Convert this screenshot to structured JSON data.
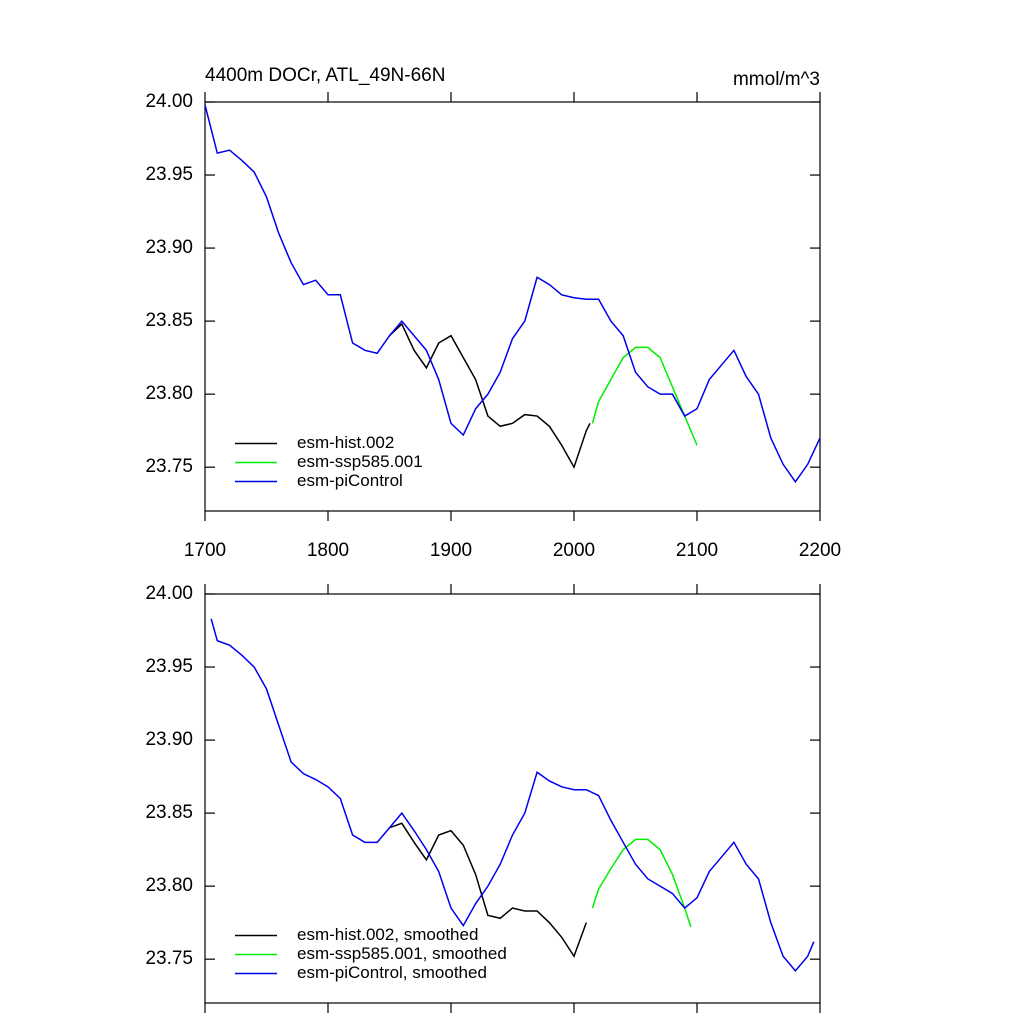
{
  "chart_data": [
    {
      "type": "line",
      "title": "4400m DOCr, ATL_49N-66N",
      "units": "mmol/m^3",
      "xlim": [
        1700,
        2200
      ],
      "xticks": [
        1700,
        1800,
        1900,
        2000,
        2100,
        2200
      ],
      "xtick_labels": true,
      "ylim": [
        23.72,
        24.0
      ],
      "yticks": [
        23.75,
        {
          "value": 23.8,
          "label": "23.80"
        },
        23.85,
        {
          "value": 23.9,
          "label": "23.90"
        },
        23.95,
        {
          "value": 24.0,
          "label": "24.00"
        }
      ],
      "legend": "lower left",
      "series": [
        {
          "name": "esm-hist.002",
          "color": "#000000",
          "x": [
            1850,
            1860,
            1870,
            1880,
            1890,
            1900,
            1910,
            1920,
            1930,
            1940,
            1950,
            1960,
            1970,
            1980,
            1990,
            2000,
            2010,
            2013
          ],
          "values": [
            23.84,
            23.848,
            23.83,
            23.818,
            23.835,
            23.84,
            23.825,
            23.81,
            23.785,
            23.778,
            23.78,
            23.786,
            23.785,
            23.778,
            23.765,
            23.75,
            23.775,
            23.78
          ]
        },
        {
          "name": "esm-ssp585.001",
          "color": "#00ee00",
          "x": [
            2015,
            2020,
            2030,
            2040,
            2050,
            2060,
            2070,
            2080,
            2090,
            2100
          ],
          "values": [
            23.78,
            23.795,
            23.81,
            23.825,
            23.832,
            23.832,
            23.825,
            23.805,
            23.785,
            23.765
          ]
        },
        {
          "name": "esm-piControl",
          "color": "#0000ee",
          "x": [
            1700,
            1710,
            1720,
            1730,
            1740,
            1750,
            1760,
            1770,
            1780,
            1790,
            1800,
            1810,
            1820,
            1830,
            1840,
            1850,
            1860,
            1870,
            1880,
            1890,
            1900,
            1910,
            1920,
            1930,
            1940,
            1950,
            1960,
            1970,
            1980,
            1990,
            2000,
            2010,
            2020,
            2030,
            2040,
            2050,
            2060,
            2070,
            2080,
            2090,
            2100,
            2110,
            2120,
            2130,
            2140,
            2150,
            2160,
            2170,
            2180,
            2190,
            2200
          ],
          "values": [
            23.998,
            23.965,
            23.967,
            23.96,
            23.952,
            23.935,
            23.91,
            23.89,
            23.875,
            23.878,
            23.868,
            23.868,
            23.835,
            23.83,
            23.828,
            23.84,
            23.85,
            23.84,
            23.83,
            23.81,
            23.78,
            23.772,
            23.79,
            23.8,
            23.815,
            23.838,
            23.85,
            23.88,
            23.875,
            23.868,
            23.866,
            23.865,
            23.865,
            23.85,
            23.84,
            23.815,
            23.805,
            23.8,
            23.8,
            23.785,
            23.79,
            23.81,
            23.82,
            23.83,
            23.812,
            23.8,
            23.77,
            23.752,
            23.74,
            23.752,
            23.77
          ]
        }
      ]
    },
    {
      "type": "line",
      "xlim": [
        1700,
        2200
      ],
      "xticks": [
        1700,
        1800,
        1900,
        2000,
        2100,
        2200
      ],
      "xtick_labels": false,
      "ylim": [
        23.72,
        24.0
      ],
      "yticks": [
        23.75,
        {
          "value": 23.8,
          "label": "23.80"
        },
        23.85,
        {
          "value": 23.9,
          "label": "23.90"
        },
        23.95,
        {
          "value": 24.0,
          "label": "24.00"
        }
      ],
      "legend": "lower left",
      "series": [
        {
          "name": "esm-hist.002, smoothed",
          "color": "#000000",
          "x": [
            1850,
            1860,
            1870,
            1880,
            1890,
            1900,
            1910,
            1920,
            1930,
            1940,
            1950,
            1960,
            1970,
            1980,
            1990,
            2000,
            2010
          ],
          "values": [
            23.84,
            23.843,
            23.83,
            23.818,
            23.835,
            23.838,
            23.828,
            23.808,
            23.78,
            23.778,
            23.785,
            23.783,
            23.783,
            23.775,
            23.765,
            23.752,
            23.775
          ]
        },
        {
          "name": "esm-ssp585.001, smoothed",
          "color": "#00ee00",
          "x": [
            2015,
            2020,
            2030,
            2040,
            2050,
            2060,
            2070,
            2080,
            2090,
            2095
          ],
          "values": [
            23.785,
            23.798,
            23.812,
            23.825,
            23.832,
            23.832,
            23.825,
            23.808,
            23.785,
            23.772
          ]
        },
        {
          "name": "esm-piControl, smoothed",
          "color": "#0000ee",
          "x": [
            1705,
            1710,
            1720,
            1730,
            1740,
            1750,
            1760,
            1770,
            1780,
            1790,
            1800,
            1810,
            1820,
            1830,
            1840,
            1850,
            1860,
            1870,
            1880,
            1890,
            1900,
            1910,
            1920,
            1930,
            1940,
            1950,
            1960,
            1970,
            1980,
            1990,
            2000,
            2010,
            2020,
            2030,
            2040,
            2050,
            2060,
            2070,
            2080,
            2090,
            2100,
            2110,
            2120,
            2130,
            2140,
            2150,
            2160,
            2170,
            2180,
            2190,
            2195
          ],
          "values": [
            23.983,
            23.968,
            23.965,
            23.958,
            23.95,
            23.935,
            23.91,
            23.885,
            23.877,
            23.873,
            23.868,
            23.86,
            23.835,
            23.83,
            23.83,
            23.84,
            23.85,
            23.838,
            23.825,
            23.81,
            23.785,
            23.773,
            23.788,
            23.8,
            23.815,
            23.835,
            23.85,
            23.878,
            23.872,
            23.868,
            23.866,
            23.866,
            23.862,
            23.845,
            23.83,
            23.815,
            23.805,
            23.8,
            23.795,
            23.785,
            23.792,
            23.81,
            23.82,
            23.83,
            23.815,
            23.805,
            23.775,
            23.752,
            23.742,
            23.752,
            23.762
          ]
        }
      ]
    }
  ]
}
